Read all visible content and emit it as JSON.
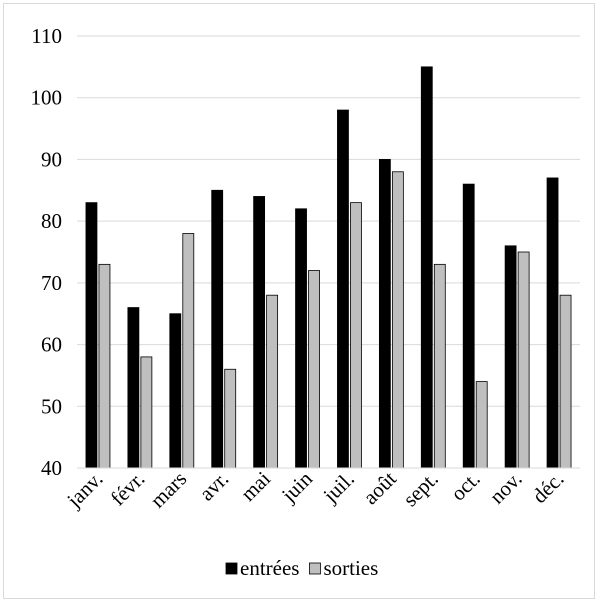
{
  "chart_data": {
    "type": "bar",
    "title": "",
    "xlabel": "",
    "ylabel": "",
    "categories": [
      "janv.",
      "févr.",
      "mars",
      "avr.",
      "mai",
      "juin",
      "juil.",
      "août",
      "sept.",
      "oct.",
      "nov.",
      "déc."
    ],
    "series": [
      {
        "name": "entrées",
        "color": "#000000",
        "values": [
          83,
          66,
          65,
          85,
          84,
          82,
          98,
          90,
          105,
          86,
          76,
          87
        ]
      },
      {
        "name": "sorties",
        "color": "#bfbfbf",
        "values": [
          73,
          58,
          78,
          56,
          68,
          72,
          83,
          88,
          73,
          54,
          75,
          68
        ]
      }
    ],
    "ylim": [
      40,
      110
    ],
    "yticks": [
      40,
      50,
      60,
      70,
      80,
      90,
      100,
      110
    ],
    "grid": true,
    "legend_position": "bottom"
  }
}
